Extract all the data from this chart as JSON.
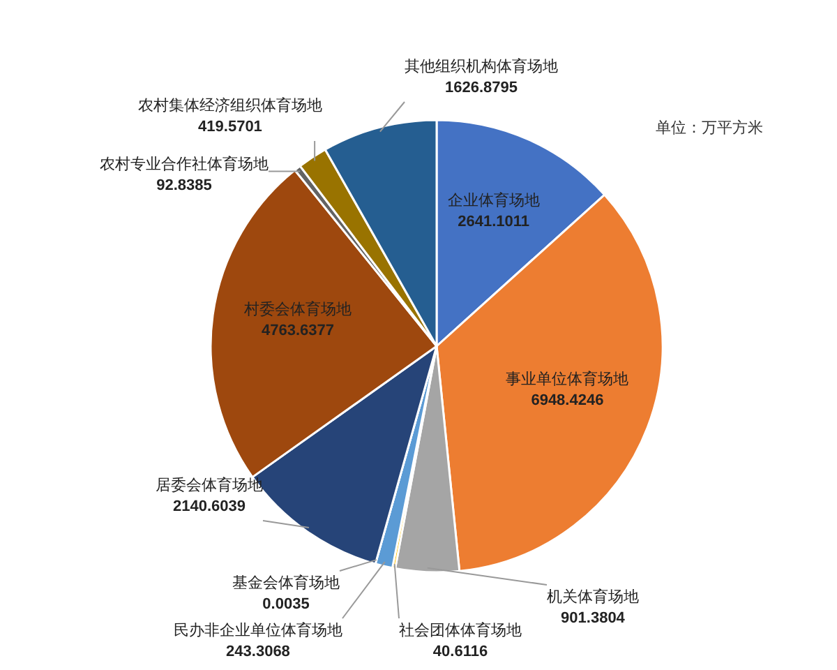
{
  "chart_data": {
    "type": "pie",
    "annotations": [
      "单位：万平方米"
    ],
    "categories": [
      "企业体育场地",
      "事业单位体育场地",
      "机关体育场地",
      "社会团体体育场地",
      "民办非企业单位体育场地",
      "基金会体育场地",
      "居委会体育场地",
      "村委会体育场地",
      "农村专业合作社体育场地",
      "农村集体经济组织体育场地",
      "其他组织机构体育场地"
    ],
    "values": [
      2641.1011,
      6948.4246,
      901.3804,
      40.6116,
      243.3068,
      0.0035,
      2140.6039,
      4763.6377,
      92.8385,
      419.5701,
      1626.8795
    ],
    "colors": [
      "#4472c4",
      "#ed7d31",
      "#a5a5a5",
      "#ffc000",
      "#5b9bd5",
      "#70ad47",
      "#264478",
      "#9e480e",
      "#636363",
      "#997300",
      "#255e91"
    ],
    "data_labels": true,
    "legend": false
  }
}
